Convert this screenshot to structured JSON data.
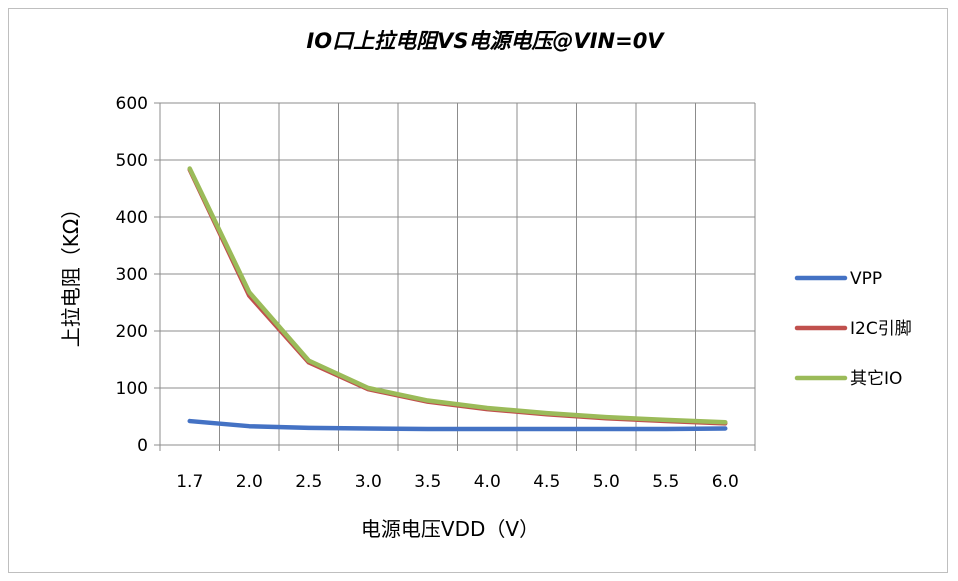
{
  "chart_data": {
    "type": "line",
    "title": "IO口上拉电阻VS电源电压@VIN=0V",
    "xlabel": "电源电压VDD（V）",
    "ylabel": "上拉电阻（KΩ）",
    "categories": [
      "1.7",
      "2.0",
      "2.5",
      "3.0",
      "3.5",
      "4.0",
      "4.5",
      "5.0",
      "5.5",
      "6.0"
    ],
    "ylim": [
      0,
      600
    ],
    "yticks": [
      "0",
      "100",
      "200",
      "300",
      "400",
      "500",
      "600"
    ],
    "grid": true,
    "legend_position": "right",
    "series": [
      {
        "name": "VPP",
        "color": "#4472c4",
        "values": [
          42,
          33,
          30,
          29,
          28,
          28,
          28,
          28,
          28,
          29
        ]
      },
      {
        "name": "I2C引脚",
        "color": "#c0504d",
        "values": [
          483,
          262,
          145,
          98,
          76,
          63,
          54,
          47,
          42,
          38
        ]
      },
      {
        "name": "其它IO",
        "color": "#9bbb59",
        "values": [
          485,
          268,
          148,
          100,
          78,
          65,
          56,
          49,
          44,
          40
        ]
      }
    ]
  }
}
